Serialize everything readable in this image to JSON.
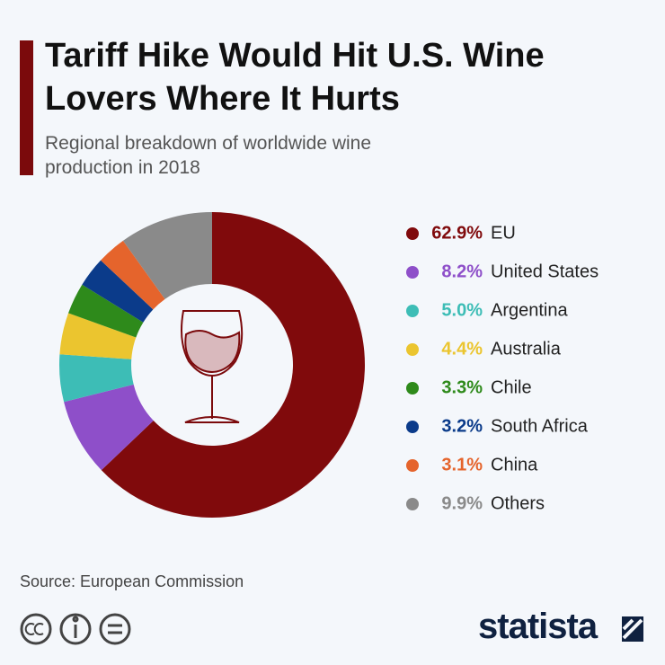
{
  "chart_data": {
    "type": "pie",
    "donut": true,
    "title": "Tariff Hike Would Hit U.S. Wine Lovers Where It Hurts",
    "subtitle": "Regional breakdown of worldwide wine production in 2018",
    "categories": [
      "EU",
      "United States",
      "Argentina",
      "Australia",
      "Chile",
      "South Africa",
      "China",
      "Others"
    ],
    "values": [
      62.9,
      8.2,
      5.0,
      4.4,
      3.3,
      3.2,
      3.1,
      9.9
    ],
    "value_labels": [
      "62.9%",
      "8.2%",
      "5.0%",
      "4.4%",
      "3.3%",
      "3.2%",
      "3.1%",
      "9.9%"
    ],
    "colors": [
      "#800a0c",
      "#8e4fc9",
      "#3dbdb6",
      "#ebc52f",
      "#2e8a1b",
      "#0b3b8a",
      "#e5642c",
      "#8a8a8a"
    ],
    "source": "Source: European Commission"
  },
  "brand": "statista"
}
